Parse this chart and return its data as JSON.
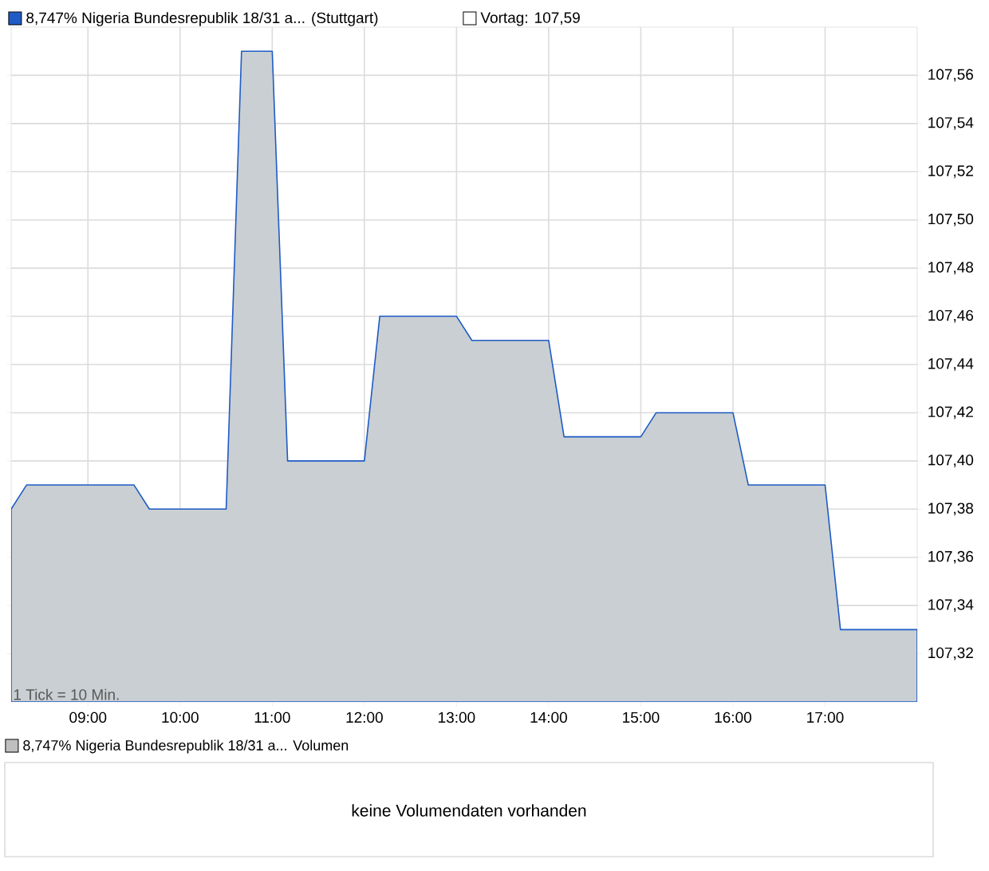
{
  "chart_data": {
    "type": "area",
    "x": [
      8.1667,
      8.3333,
      9.5,
      9.6667,
      10.5,
      10.6667,
      11.0,
      11.1667,
      12.0,
      12.1667,
      13.0,
      13.1667,
      14.0,
      14.1667,
      15.0,
      15.1667,
      16.0,
      16.1667,
      17.0,
      17.1667,
      18.0
    ],
    "series": [
      {
        "name": "8,747% Nigeria Bundesrepublik 18/31 a... (Stuttgart)",
        "color": "#1f5bc6",
        "values": [
          107.38,
          107.39,
          107.39,
          107.38,
          107.38,
          107.57,
          107.57,
          107.4,
          107.4,
          107.46,
          107.46,
          107.45,
          107.45,
          107.41,
          107.41,
          107.42,
          107.42,
          107.39,
          107.39,
          107.33,
          107.33
        ]
      }
    ],
    "xlim": [
      8.1667,
      18.0
    ],
    "ylim": [
      107.3,
      107.58
    ],
    "xticks": [
      {
        "value": 9,
        "label": "09:00"
      },
      {
        "value": 10,
        "label": "10:00"
      },
      {
        "value": 11,
        "label": "11:00"
      },
      {
        "value": 12,
        "label": "12:00"
      },
      {
        "value": 13,
        "label": "13:00"
      },
      {
        "value": 14,
        "label": "14:00"
      },
      {
        "value": 15,
        "label": "15:00"
      },
      {
        "value": 16,
        "label": "16:00"
      },
      {
        "value": 17,
        "label": "17:00"
      }
    ],
    "yticks": [
      {
        "value": 107.32,
        "label": "107,32"
      },
      {
        "value": 107.34,
        "label": "107,34"
      },
      {
        "value": 107.36,
        "label": "107,36"
      },
      {
        "value": 107.38,
        "label": "107,38"
      },
      {
        "value": 107.4,
        "label": "107,40"
      },
      {
        "value": 107.42,
        "label": "107,42"
      },
      {
        "value": 107.44,
        "label": "107,44"
      },
      {
        "value": 107.46,
        "label": "107,46"
      },
      {
        "value": 107.48,
        "label": "107,48"
      },
      {
        "value": 107.5,
        "label": "107,50"
      },
      {
        "value": 107.52,
        "label": "107,52"
      },
      {
        "value": 107.54,
        "label": "107,54"
      },
      {
        "value": 107.56,
        "label": "107,56"
      }
    ],
    "grid": true,
    "legend": "top left",
    "annotations": [
      "Vortag: 107,59",
      "1 Tick = 10 Min.",
      "8,747% Nigeria Bundesrepublik 18/31 a... Volumen",
      "keine Volumendaten vorhanden"
    ]
  }
}
